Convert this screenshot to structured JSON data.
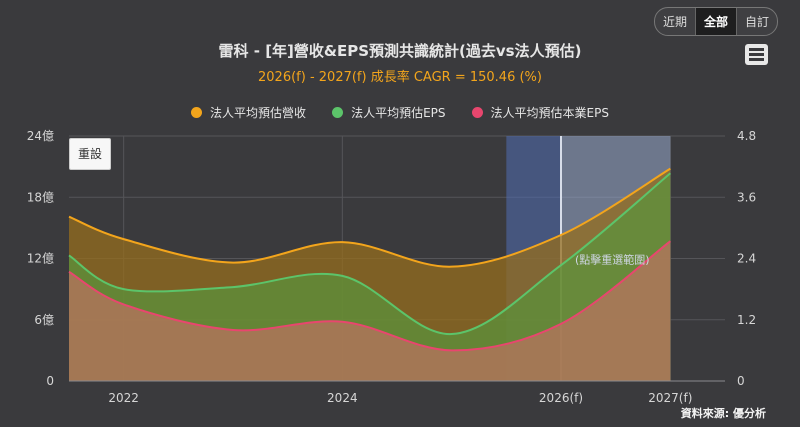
{
  "range_buttons": [
    {
      "label": "近期",
      "active": false
    },
    {
      "label": "全部",
      "active": true
    },
    {
      "label": "自訂",
      "active": false
    }
  ],
  "menu_icon": "hamburger-menu-icon",
  "reset_label": "重設",
  "source_label": "資料來源: 優分析",
  "chart_data": {
    "type": "area",
    "title": "雷科 - [年]營收&EPS預測共識統計(過去vs法人預估)",
    "subtitle": "2026(f) - 2027(f) 成長率 CAGR = 150.46 (%)",
    "x_ticks": [
      {
        "label": "2022",
        "x": 2022
      },
      {
        "label": "2024",
        "x": 2024
      },
      {
        "label": "2026(f)",
        "x": 2026
      },
      {
        "label": "2027(f)",
        "x": 2027
      }
    ],
    "x_range": [
      2021.5,
      2027.5
    ],
    "y_left": {
      "ticks": [
        "0",
        "6億",
        "12億",
        "18億",
        "24億"
      ],
      "range": [
        0,
        24
      ],
      "unit": "億"
    },
    "y_right": {
      "ticks": [
        "0",
        "1.2",
        "2.4",
        "3.6",
        "4.8"
      ],
      "range": [
        0,
        4.8
      ]
    },
    "forecast_band": {
      "start": 2025.5,
      "split": 2026,
      "end": 2027,
      "label": "(點擊重選範圍)"
    },
    "series": [
      {
        "name": "法人平均預估營收",
        "color": "#f3a51c",
        "axis": "left",
        "points": [
          [
            2021.5,
            16.1
          ],
          [
            2022,
            13.9
          ],
          [
            2023,
            11.6
          ],
          [
            2024,
            13.6
          ],
          [
            2025,
            11.2
          ],
          [
            2026,
            14.3
          ],
          [
            2027,
            20.8
          ]
        ]
      },
      {
        "name": "法人平均預估EPS",
        "color": "#5cc46a",
        "axis": "right",
        "points": [
          [
            2021.5,
            2.46
          ],
          [
            2022,
            1.8
          ],
          [
            2023,
            1.84
          ],
          [
            2024,
            2.06
          ],
          [
            2025,
            0.92
          ],
          [
            2026,
            2.27
          ],
          [
            2027,
            4.07
          ]
        ]
      },
      {
        "name": "法人平均預估本業EPS",
        "color": "#e8466e",
        "axis": "right",
        "points": [
          [
            2021.5,
            2.14
          ],
          [
            2022,
            1.5
          ],
          [
            2023,
            1.0
          ],
          [
            2024,
            1.16
          ],
          [
            2025,
            0.6
          ],
          [
            2026,
            1.12
          ],
          [
            2027,
            2.74
          ]
        ]
      }
    ]
  }
}
